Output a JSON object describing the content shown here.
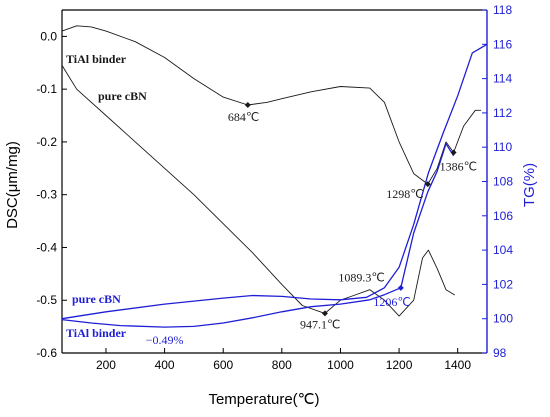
{
  "chart_data": {
    "type": "line",
    "xlabel": "Temperature(℃)",
    "ylabel_left": "DSC(μm/mg)",
    "ylabel_right": "TG(%)",
    "xlim": [
      50,
      1500
    ],
    "ylim_left": [
      -0.6,
      0.05
    ],
    "ylim_right": [
      98,
      118
    ],
    "x_ticks": [
      200,
      400,
      600,
      800,
      1000,
      1200,
      1400
    ],
    "y_left_ticks": [
      0.0,
      -0.1,
      -0.2,
      -0.3,
      -0.4,
      -0.5,
      -0.6
    ],
    "y_left_tick_labels": [
      "0.0",
      "-0.1",
      "-0.2",
      "-0.3",
      "-0.4",
      "-0.5",
      "-0.6"
    ],
    "y_right_ticks": [
      98,
      100,
      102,
      104,
      106,
      108,
      110,
      112,
      114,
      116,
      118
    ],
    "colors": {
      "dsc": "#1a1a1a",
      "tg": "#1f1fd6",
      "left_axis": "#000000",
      "right_axis": "#1f1fd6"
    },
    "series": [
      {
        "name": "TiAl binder",
        "kind": "DSC",
        "axis": "left",
        "color": "#1a1a1a",
        "x": [
          50,
          100,
          150,
          200,
          300,
          400,
          500,
          600,
          684,
          750,
          800,
          900,
          1000,
          1100,
          1150,
          1200,
          1250,
          1298,
          1330,
          1360,
          1386,
          1420,
          1460,
          1480
        ],
        "y": [
          0.01,
          0.02,
          0.018,
          0.01,
          -0.01,
          -0.04,
          -0.08,
          -0.115,
          -0.13,
          -0.125,
          -0.118,
          -0.105,
          -0.095,
          -0.098,
          -0.125,
          -0.2,
          -0.26,
          -0.28,
          -0.25,
          -0.2,
          -0.22,
          -0.17,
          -0.14,
          -0.14
        ]
      },
      {
        "name": "pure cBN",
        "kind": "DSC",
        "axis": "left",
        "color": "#1a1a1a",
        "x": [
          50,
          100,
          200,
          300,
          400,
          500,
          600,
          700,
          800,
          870,
          947.1,
          1000,
          1050,
          1100,
          1150,
          1200,
          1250,
          1280,
          1300,
          1330,
          1360,
          1390
        ],
        "y": [
          -0.055,
          -0.1,
          -0.15,
          -0.2,
          -0.25,
          -0.3,
          -0.355,
          -0.41,
          -0.47,
          -0.51,
          -0.525,
          -0.5,
          -0.49,
          -0.48,
          -0.5,
          -0.53,
          -0.5,
          -0.42,
          -0.405,
          -0.44,
          -0.48,
          -0.49
        ]
      },
      {
        "name": "pure cBN",
        "kind": "TG",
        "axis": "right",
        "color": "#1f1fd6",
        "x": [
          50,
          200,
          400,
          600,
          700,
          800,
          900,
          1000,
          1089.3,
          1150,
          1200,
          1250,
          1300,
          1350,
          1400,
          1450,
          1500
        ],
        "y": [
          100.0,
          100.4,
          100.85,
          101.2,
          101.35,
          101.3,
          101.15,
          101.1,
          101.25,
          101.8,
          103.0,
          105.5,
          108.5,
          110.8,
          113.0,
          115.5,
          116.0
        ]
      },
      {
        "name": "TiAl binder",
        "kind": "TG",
        "axis": "right",
        "color": "#1f1fd6",
        "x": [
          50,
          150,
          250,
          400,
          500,
          600,
          700,
          800,
          900,
          1000,
          1100,
          1150,
          1206,
          1250,
          1298,
          1330,
          1360,
          1386
        ],
        "y": [
          99.95,
          99.75,
          99.6,
          99.51,
          99.55,
          99.75,
          100.05,
          100.4,
          100.7,
          100.85,
          101.1,
          101.4,
          101.8,
          105.0,
          107.4,
          108.6,
          110.2,
          109.5
        ]
      }
    ],
    "series_labels": [
      {
        "text": "TiAl binder",
        "color": "#1a1a1a"
      },
      {
        "text": "pure cBN",
        "color": "#1a1a1a"
      },
      {
        "text": "pure cBN",
        "color": "#1f1fd6"
      },
      {
        "text": "TiAl binder",
        "color": "#1f1fd6"
      }
    ],
    "annotations": [
      {
        "text": "684℃",
        "x": 684,
        "y": -0.13,
        "axis": "left",
        "color": "#1a1a1a",
        "marker": true,
        "anchor": "start",
        "dx": -20,
        "dy": 16
      },
      {
        "text": "947.1℃",
        "x": 947.1,
        "y": -0.525,
        "axis": "left",
        "color": "#1a1a1a",
        "marker": true,
        "anchor": "start",
        "dx": -25,
        "dy": 15
      },
      {
        "text": "1298℃",
        "x": 1298,
        "y": -0.28,
        "axis": "left",
        "color": "#1a1a1a",
        "marker": true,
        "anchor": "end",
        "dx": -4,
        "dy": 14
      },
      {
        "text": "1386℃",
        "x": 1386,
        "y": -0.22,
        "axis": "left",
        "color": "#1a1a1a",
        "marker": true,
        "anchor": "start",
        "dx": -14,
        "dy": 18
      },
      {
        "text": "1089.3℃",
        "x": 1089.3,
        "y": 101.25,
        "axis": "right",
        "color": "#1a1a1a",
        "marker": false,
        "anchor": "middle",
        "dx": -5,
        "dy": -16
      },
      {
        "text": "1206℃",
        "x": 1206,
        "y": 101.8,
        "axis": "right",
        "color": "#1f1fd6",
        "marker": true,
        "anchor": "end",
        "dx": 10,
        "dy": 18
      },
      {
        "text": "−0.49%",
        "x": 400,
        "y": 99.51,
        "axis": "right",
        "color": "#1f1fd6",
        "marker": false,
        "anchor": "middle",
        "dx": 0,
        "dy": 17
      }
    ]
  }
}
